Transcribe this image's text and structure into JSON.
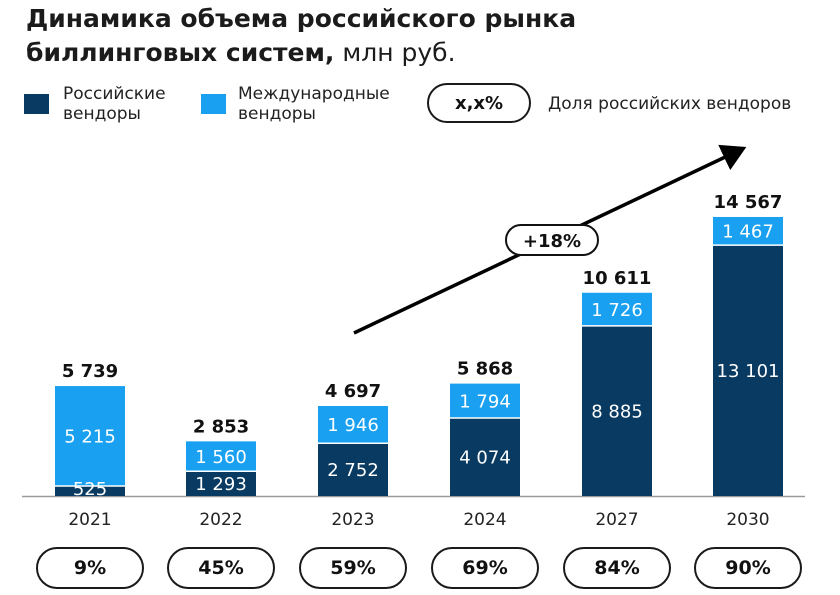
{
  "title": {
    "main": "Динамика объема российского рынка биллинговых систем,",
    "line1": "Динамика объема российского рынка",
    "line2": "биллинговых систем,",
    "unit": " млн руб."
  },
  "legend": {
    "russian": {
      "label_line1": "Российские",
      "label_line2": "вендоры",
      "label": "Российские вендоры",
      "color": "#083a62"
    },
    "international": {
      "label_line1": "Международные",
      "label_line2": "вендоры",
      "label": "Международные вендоры",
      "color": "#19a0f0"
    },
    "share_pill": "x,x%",
    "share_label": "Доля российских вендоров"
  },
  "chart_data": {
    "type": "bar",
    "stacked": true,
    "title": "Динамика объема российского рынка биллинговых систем, млн руб.",
    "categories": [
      "2021",
      "2022",
      "2023",
      "2024",
      "2027",
      "2030"
    ],
    "series": [
      {
        "name": "Российские вендоры",
        "values": [
          525,
          1293,
          2752,
          4074,
          8885,
          13101
        ],
        "labels": [
          "525",
          "1 293",
          "2 752",
          "4 074",
          "8 885",
          "13 101"
        ],
        "color": "#083a62"
      },
      {
        "name": "Международные вендоры",
        "values": [
          5215,
          1560,
          1946,
          1794,
          1726,
          1467
        ],
        "labels": [
          "5 215",
          "1 560",
          "1 946",
          "1 794",
          "1 726",
          "1 467"
        ],
        "color": "#19a0f0"
      }
    ],
    "totals": [
      5739,
      2853,
      4697,
      5868,
      10611,
      14567
    ],
    "total_labels": [
      "5 739",
      "2 853",
      "4 697",
      "5 868",
      "10 611",
      "14 567"
    ],
    "russian_share": [
      "9%",
      "45%",
      "59%",
      "69%",
      "84%",
      "90%"
    ],
    "growth_annotation": "+18%",
    "ylim": [
      0,
      14567
    ],
    "xlabel": "",
    "ylabel": "",
    "grid": false,
    "legend_position": "top-left"
  }
}
